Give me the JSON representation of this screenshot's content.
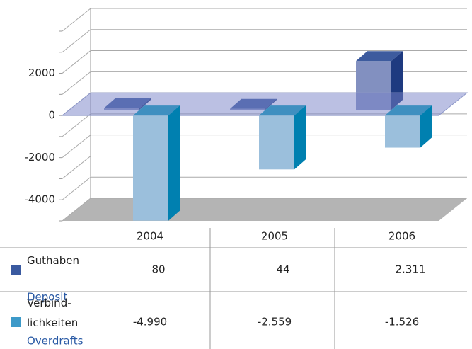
{
  "chart_data": {
    "type": "bar3d",
    "categories": [
      "2004",
      "2005",
      "2006"
    ],
    "series": [
      {
        "name": "Guthaben",
        "translation": "Deposit",
        "color": "#3a5aa0",
        "values": [
          80,
          44,
          2311
        ],
        "value_labels": [
          "80",
          "44",
          "2.311"
        ]
      },
      {
        "name": "Verbind-\nlichkeiten",
        "translation": "Overdrafts",
        "color": "#3d9ac9",
        "values": [
          -4990,
          -2559,
          -1526
        ],
        "value_labels": [
          "-4.990",
          "-2.559",
          "-1.526"
        ]
      }
    ],
    "ylim": [
      -5000,
      4000
    ],
    "yticks": [
      -4000,
      -2000,
      0,
      2000
    ],
    "minor_yticks": [
      -5000,
      -3000,
      -1000,
      1000,
      3000,
      4000
    ],
    "grid": true
  }
}
